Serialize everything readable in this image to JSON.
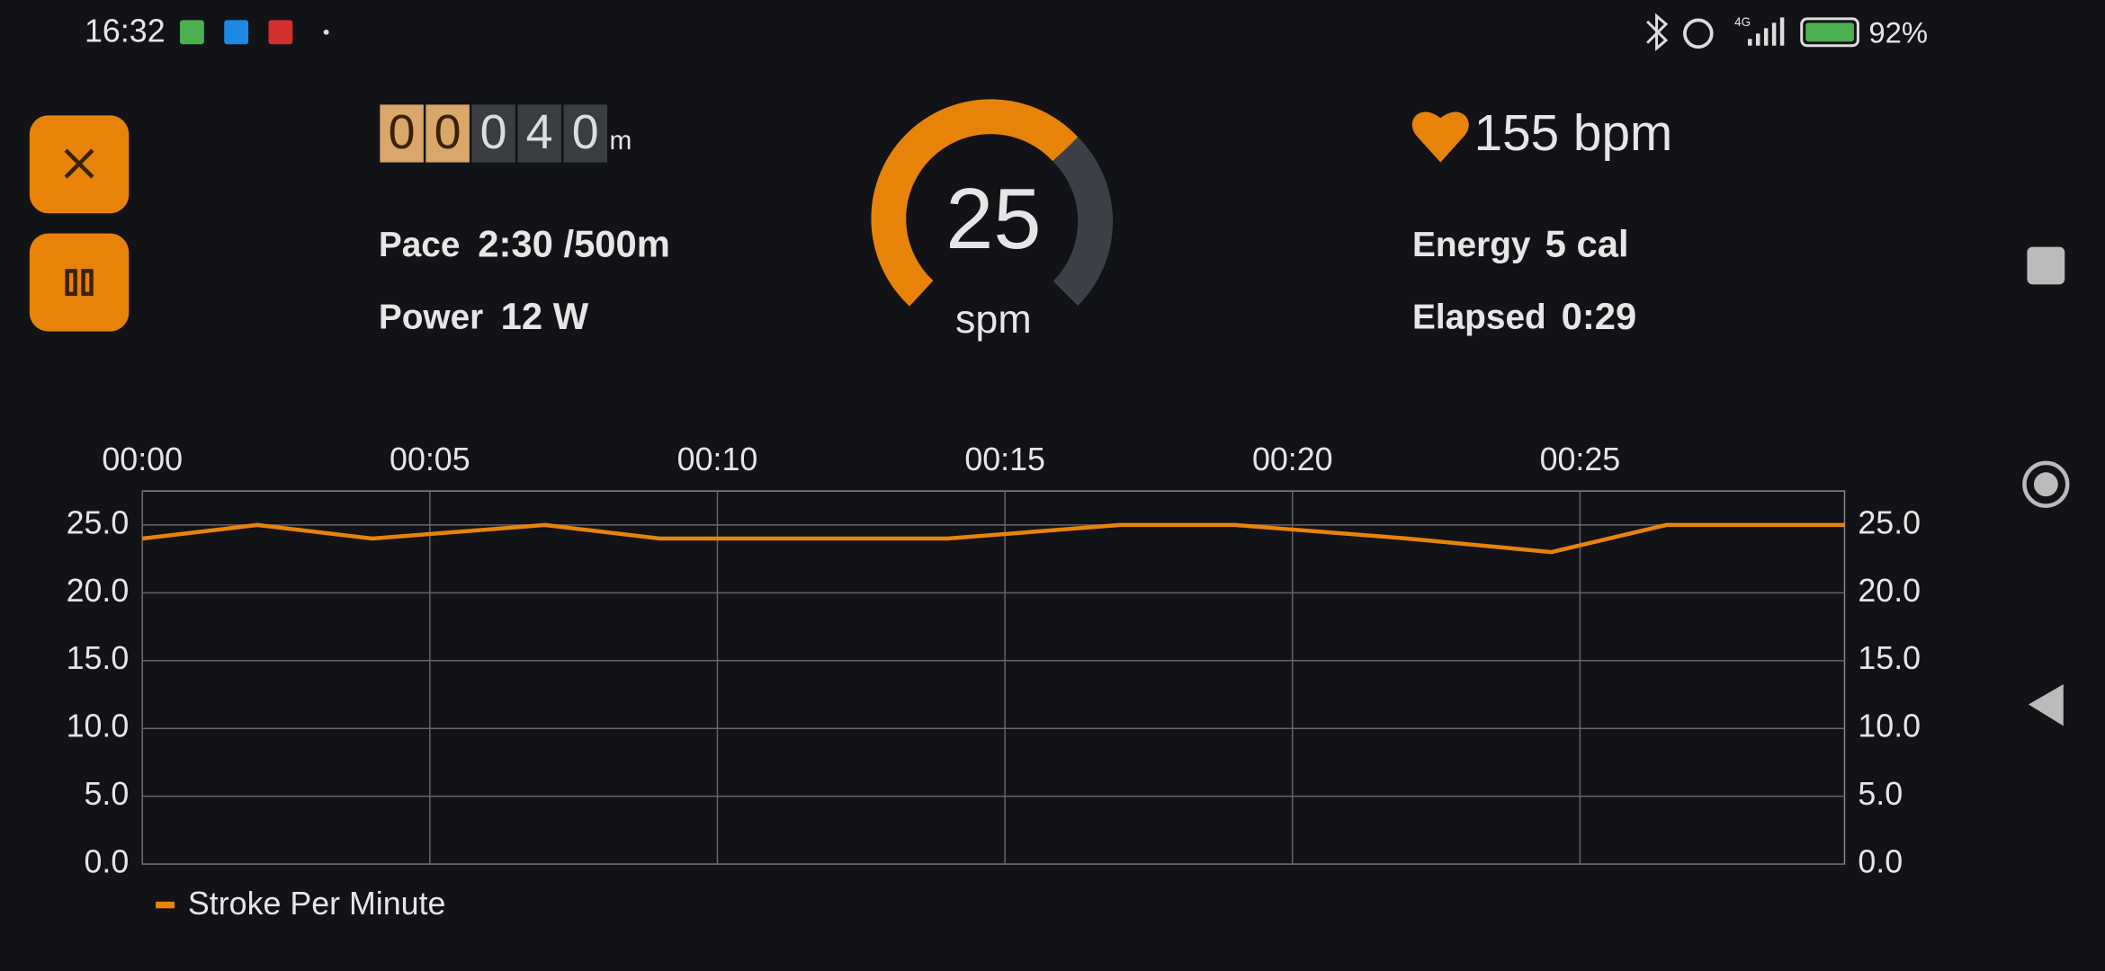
{
  "status_bar": {
    "time": "16:32",
    "network": "4G",
    "battery": "92%"
  },
  "workout": {
    "distance_digits": [
      "0",
      "0",
      "0",
      "4",
      "0"
    ],
    "distance_unit": "m",
    "pace_label": "Pace",
    "pace": "2:30 /500m",
    "power_label": "Power",
    "power": "12 W",
    "stroke_rate": "25",
    "stroke_rate_unit": "spm",
    "heart_rate": "155 bpm",
    "energy_label": "Energy",
    "energy": "5 cal",
    "elapsed_label": "Elapsed",
    "elapsed": "0:29"
  },
  "chart_data": {
    "type": "line",
    "x": [
      0,
      2,
      4,
      7,
      9,
      14,
      17,
      19,
      22,
      24.5,
      26.5,
      29.6
    ],
    "series": [
      {
        "name": "Stroke Per Minute",
        "color": "#e8830a",
        "values": [
          24,
          25,
          24,
          25,
          24,
          24,
          25,
          25,
          24,
          23,
          25,
          25
        ]
      }
    ],
    "xlim": [
      0,
      29.6
    ],
    "xticks": [
      {
        "value": 0,
        "label": "00:00"
      },
      {
        "value": 5,
        "label": "00:05"
      },
      {
        "value": 10,
        "label": "00:10"
      },
      {
        "value": 15,
        "label": "00:15"
      },
      {
        "value": 20,
        "label": "00:20"
      },
      {
        "value": 25,
        "label": "00:25"
      }
    ],
    "ylim": [
      0,
      27.5
    ],
    "yticks": [
      {
        "value": 0,
        "label": "0.0"
      },
      {
        "value": 5,
        "label": "5.0"
      },
      {
        "value": 10,
        "label": "10.0"
      },
      {
        "value": 15,
        "label": "15.0"
      },
      {
        "value": 20,
        "label": "20.0"
      },
      {
        "value": 25,
        "label": "25.0"
      }
    ],
    "grid": true,
    "legend": "bottom-left"
  }
}
